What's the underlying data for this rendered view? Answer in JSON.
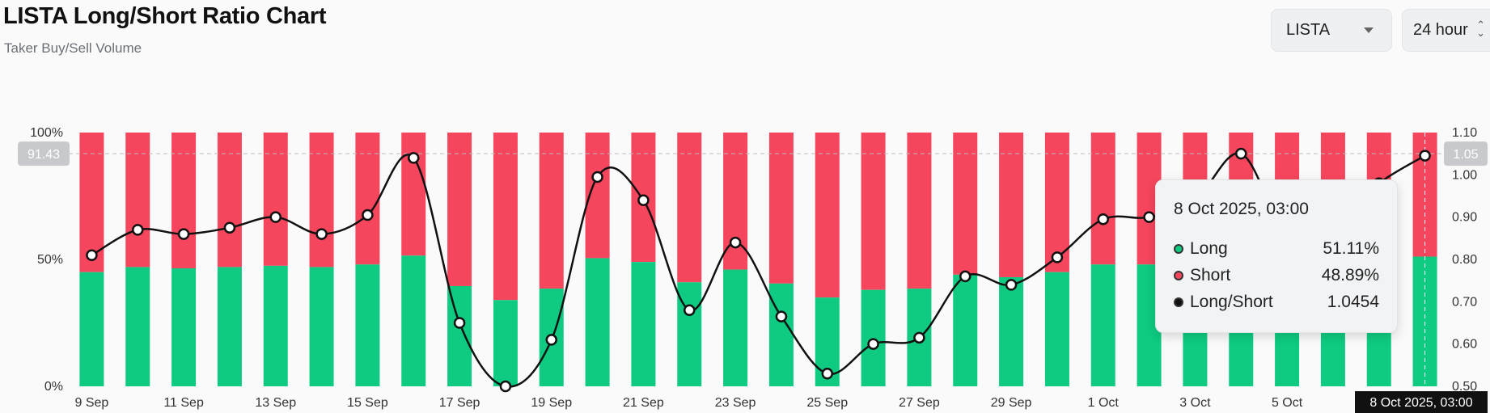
{
  "header": {
    "title": "LISTA Long/Short Ratio Chart",
    "subtitle": "Taker Buy/Sell Volume"
  },
  "controls": {
    "symbol": "LISTA",
    "period": "24 hour"
  },
  "colors": {
    "long": "#0ecb81",
    "short": "#f6465d",
    "ratio_line": "#111111"
  },
  "chart_data": {
    "type": "bar",
    "stacked": true,
    "percent": true,
    "categories": [
      "9 Sep",
      "10 Sep",
      "11 Sep",
      "12 Sep",
      "13 Sep",
      "14 Sep",
      "15 Sep",
      "16 Sep",
      "17 Sep",
      "18 Sep",
      "19 Sep",
      "20 Sep",
      "21 Sep",
      "22 Sep",
      "23 Sep",
      "24 Sep",
      "25 Sep",
      "26 Sep",
      "27 Sep",
      "28 Sep",
      "29 Sep",
      "30 Sep",
      "1 Oct",
      "2 Oct",
      "3 Oct",
      "4 Oct",
      "5 Oct",
      "6 Oct",
      "7 Oct",
      "8 Oct"
    ],
    "x_tick_labels": [
      "9 Sep",
      "11 Sep",
      "13 Sep",
      "15 Sep",
      "17 Sep",
      "19 Sep",
      "21 Sep",
      "23 Sep",
      "25 Sep",
      "27 Sep",
      "29 Sep",
      "1 Oct",
      "3 Oct",
      "5 Oct"
    ],
    "series": [
      {
        "name": "Long",
        "type": "bar",
        "axis": "left",
        "values": [
          45,
          47,
          46.5,
          47,
          47.5,
          47,
          48,
          51.5,
          39.5,
          34,
          38.5,
          50.5,
          49,
          41,
          46,
          40.5,
          35,
          38,
          38.5,
          44,
          43,
          45,
          48,
          48,
          50,
          48,
          47,
          49,
          48.5,
          51.11
        ]
      },
      {
        "name": "Short",
        "type": "bar",
        "axis": "left",
        "values": [
          55,
          53,
          53.5,
          53,
          52.5,
          53,
          52,
          48.5,
          60.5,
          66,
          61.5,
          49.5,
          51,
          59,
          54,
          59.5,
          65,
          62,
          61.5,
          56,
          57,
          55,
          52,
          52,
          50,
          52,
          53,
          51,
          51.5,
          48.89
        ]
      },
      {
        "name": "Long/Short",
        "type": "line",
        "axis": "right",
        "values": [
          0.81,
          0.87,
          0.86,
          0.875,
          0.9,
          0.86,
          0.905,
          1.04,
          0.65,
          0.5,
          0.61,
          0.995,
          0.94,
          0.68,
          0.84,
          0.665,
          0.53,
          0.6,
          0.615,
          0.76,
          0.74,
          0.805,
          0.895,
          0.9,
          0.94,
          1.05,
          0.86,
          0.88,
          0.98,
          1.0454
        ]
      }
    ],
    "y_left": {
      "ticks": [
        "0%",
        "50%",
        "100%"
      ],
      "lim": [
        0,
        100
      ]
    },
    "y_right": {
      "ticks": [
        "0.50",
        "0.60",
        "0.70",
        "0.80",
        "0.90",
        "1.00",
        "1.10"
      ],
      "lim": [
        0.5,
        1.1
      ]
    },
    "crosshair": {
      "left_value": "91.43",
      "right_value": "1.05",
      "x_label": "8 Oct 2025, 03:00"
    }
  },
  "tooltip": {
    "time": "8 Oct 2025, 03:00",
    "rows": [
      {
        "label": "Long",
        "value": "51.11%",
        "color": "#0ecb81"
      },
      {
        "label": "Short",
        "value": "48.89%",
        "color": "#f6465d"
      },
      {
        "label": "Long/Short",
        "value": "1.0454",
        "color": "#111111"
      }
    ]
  }
}
